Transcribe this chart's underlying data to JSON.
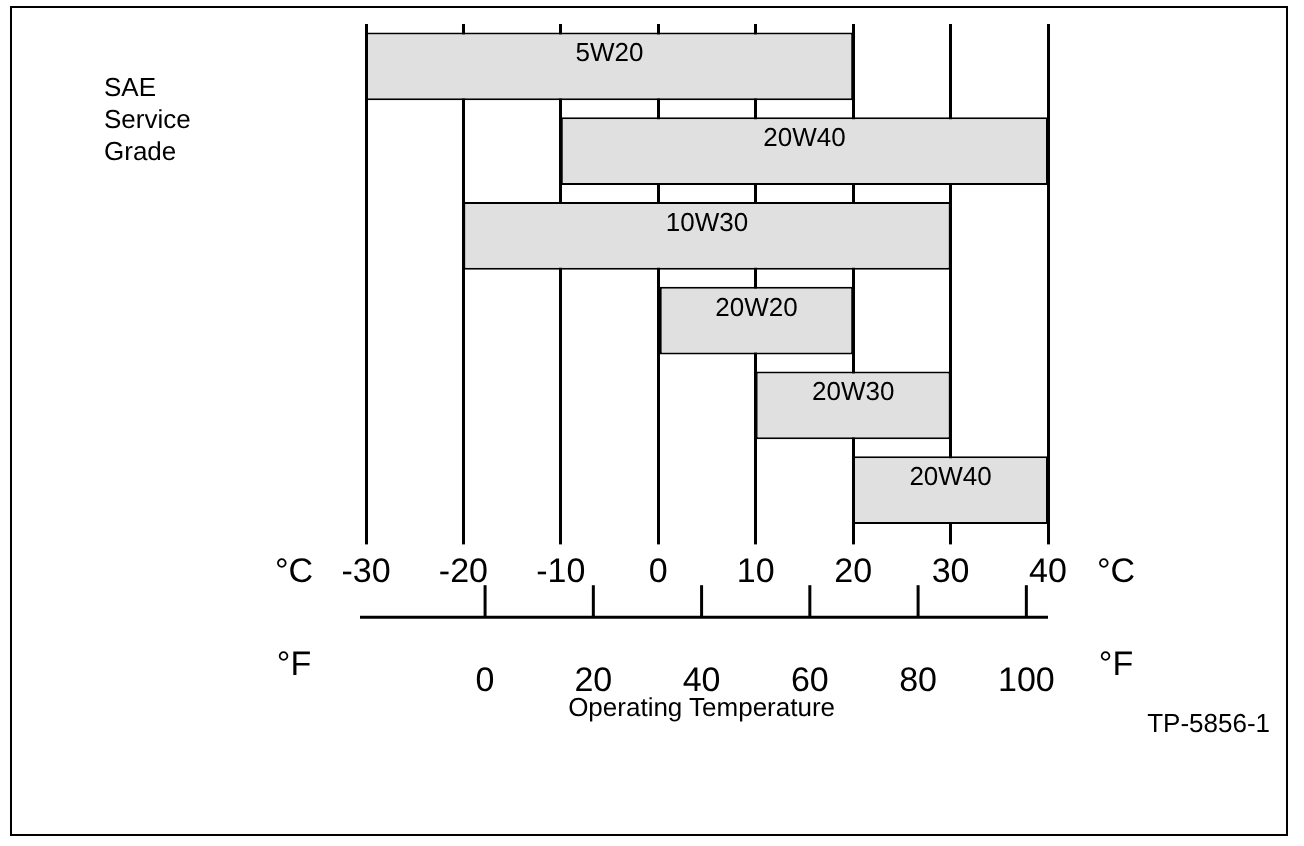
{
  "chart_data": {
    "type": "bar",
    "orientation": "horizontal",
    "xlabel": "°C",
    "x2label": "°F",
    "categories": [
      "5W20",
      "20W40",
      "10W30",
      "20W20",
      "20W30",
      "20W40"
    ],
    "base": [
      -30,
      -10,
      -20,
      0,
      10,
      20
    ],
    "values": [
      50,
      50,
      50,
      20,
      20,
      20
    ],
    "color": "#e0e0e0",
    "xlim": [
      -30,
      40
    ],
    "xticks": [
      -30,
      -20,
      -10,
      0,
      10,
      20,
      30,
      40
    ],
    "x2lim": [
      -22,
      104
    ],
    "x2ticks": [
      0,
      20,
      40,
      60,
      80,
      100
    ],
    "grid": "x",
    "tick_labels": "x",
    "annotations": [
      "SAE Service Grade",
      "Operating Temperature",
      "TP-5856-1"
    ]
  }
}
